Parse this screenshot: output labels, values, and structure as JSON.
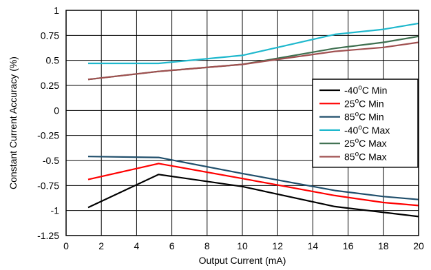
{
  "chart_data": {
    "type": "line",
    "xlabel": "Output Current (mA)",
    "ylabel": "Constant Current Accuracy (%)",
    "xlim": [
      0,
      20
    ],
    "ylim": [
      -1.25,
      1
    ],
    "x_ticks": [
      0,
      2,
      4,
      6,
      8,
      10,
      12,
      14,
      16,
      18,
      20
    ],
    "x_tick_labels": [
      "0",
      "2",
      "4",
      "6",
      "8",
      "10",
      "12",
      "14",
      "16",
      "18",
      "20"
    ],
    "y_ticks": [
      1,
      0.75,
      0.5,
      0.25,
      0,
      -0.25,
      -0.5,
      -0.75,
      -1,
      -1.25
    ],
    "y_tick_labels": [
      "1",
      "0.75",
      "0.5",
      "0.25",
      "0",
      "-0.25",
      "-0.5",
      "-0.75",
      "-1",
      "-1.25"
    ],
    "grid": true,
    "legend_position": "right",
    "series": [
      {
        "name": "-40°C Min",
        "label_pre": "-40",
        "label_sup": "o",
        "label_post": "C Min",
        "color": "#000000",
        "x": [
          1.25,
          5.25,
          10,
          15.25,
          20
        ],
        "y": [
          -0.97,
          -0.64,
          -0.76,
          -0.96,
          -1.06
        ]
      },
      {
        "name": "25°C Min",
        "label_pre": "25",
        "label_sup": "o",
        "label_post": "C Min",
        "color": "#ff0000",
        "x": [
          1.25,
          5.25,
          10,
          15.25,
          18,
          20
        ],
        "y": [
          -0.69,
          -0.53,
          -0.68,
          -0.85,
          -0.92,
          -0.95
        ]
      },
      {
        "name": "85°C Min",
        "label_pre": "85",
        "label_sup": "o",
        "label_post": "C Min",
        "color": "#1f4e6b",
        "x": [
          1.25,
          5.25,
          10,
          15.25,
          18,
          20
        ],
        "y": [
          -0.46,
          -0.47,
          -0.63,
          -0.8,
          -0.86,
          -0.89
        ]
      },
      {
        "name": "-40°C Max",
        "label_pre": "-40",
        "label_sup": "o",
        "label_post": "C Max",
        "color": "#1fb8cd",
        "x": [
          1.25,
          5.25,
          10,
          15.25,
          18,
          20
        ],
        "y": [
          0.47,
          0.47,
          0.55,
          0.76,
          0.81,
          0.87
        ]
      },
      {
        "name": "25°C Max",
        "label_pre": "25",
        "label_sup": "o",
        "label_post": "C Max",
        "color": "#3f7050",
        "x": [
          1.25,
          5.25,
          10,
          15.25,
          18,
          20
        ],
        "y": [
          0.31,
          0.39,
          0.46,
          0.62,
          0.68,
          0.74
        ]
      },
      {
        "name": "85°C Max",
        "label_pre": "85",
        "label_sup": "o",
        "label_post": "C Max",
        "color": "#a05050",
        "x": [
          1.25,
          5.25,
          10,
          15.25,
          18,
          20
        ],
        "y": [
          0.31,
          0.39,
          0.46,
          0.59,
          0.63,
          0.68
        ]
      }
    ]
  }
}
